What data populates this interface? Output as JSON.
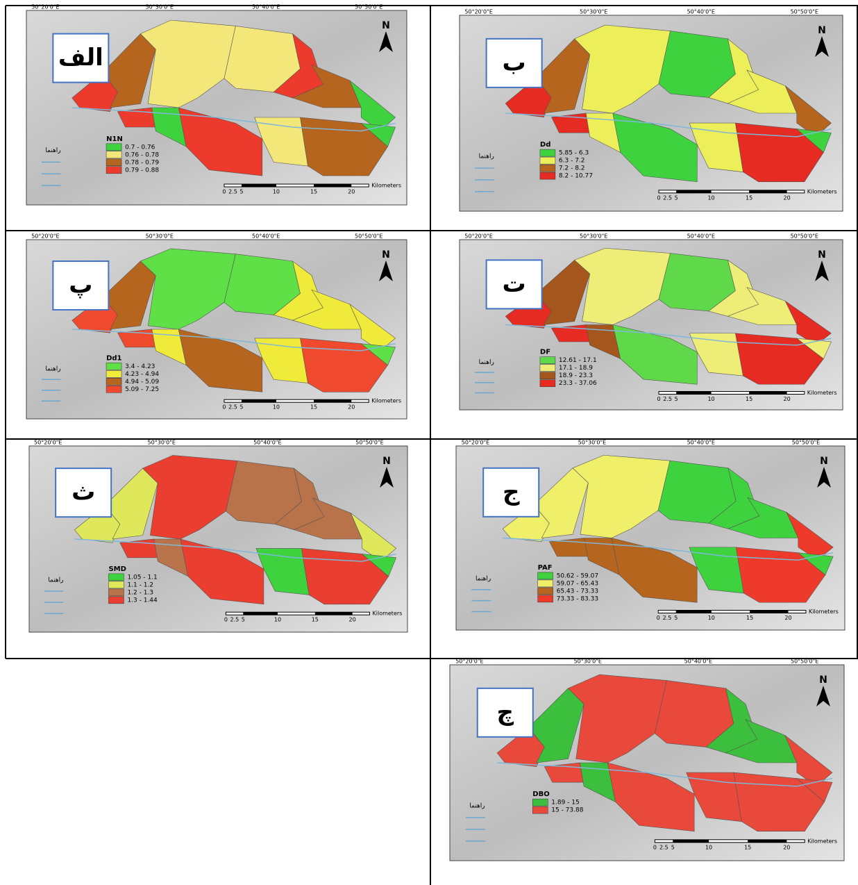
{
  "panels": [
    {
      "label": "الف",
      "legend": {
        "title": "N1N",
        "classes": [
          {
            "range": "0.7 - 0.76",
            "color": "#3fd23f"
          },
          {
            "range": "0.76 - 0.78",
            "color": "#f4e77a"
          },
          {
            "range": "0.78 - 0.79",
            "color": "#b5651d"
          },
          {
            "range": "0.79 - 0.88",
            "color": "#ec3b2c"
          }
        ]
      }
    },
    {
      "label": "ب",
      "legend": {
        "title": "Dd",
        "classes": [
          {
            "range": "5.85 - 6.3",
            "color": "#3fd23f"
          },
          {
            "range": "6.3 - 7.2",
            "color": "#ecef5a"
          },
          {
            "range": "7.2 - 8.2",
            "color": "#b5651d"
          },
          {
            "range": "8.2 - 10.77",
            "color": "#e52b22"
          }
        ]
      }
    },
    {
      "label": "پ",
      "legend": {
        "title": "Dd1",
        "classes": [
          {
            "range": "3.4 - 4.23",
            "color": "#5fe046"
          },
          {
            "range": "4.23 - 4.94",
            "color": "#f0ea3a"
          },
          {
            "range": "4.94 - 5.09",
            "color": "#b5651d"
          },
          {
            "range": "5.09 - 7.25",
            "color": "#ef4a2e"
          }
        ]
      }
    },
    {
      "label": "ت",
      "legend": {
        "title": "DF",
        "classes": [
          {
            "range": "12.61 - 17.1",
            "color": "#5fd84a"
          },
          {
            "range": "17.1 - 18.9",
            "color": "#eeed78"
          },
          {
            "range": "18.9 - 23.3",
            "color": "#a5561d"
          },
          {
            "range": "23.3 - 37.06",
            "color": "#e52b22"
          }
        ]
      }
    },
    {
      "label": "ث",
      "legend": {
        "title": "SMD",
        "classes": [
          {
            "range": "1.05 - 1.1",
            "color": "#3fd23f"
          },
          {
            "range": "1.1 - 1.2",
            "color": "#dfe85a"
          },
          {
            "range": "1.2 - 1.3",
            "color": "#b8734a"
          },
          {
            "range": "1.3 - 1.44",
            "color": "#ea3f30"
          }
        ]
      }
    },
    {
      "label": "ج",
      "legend": {
        "title": "PAF",
        "classes": [
          {
            "range": "50.62 - 59.07",
            "color": "#3fd23f"
          },
          {
            "range": "59.07 - 65.43",
            "color": "#f0ef6a"
          },
          {
            "range": "65.43 - 73.33",
            "color": "#b5651d"
          },
          {
            "range": "73.33 - 83.33",
            "color": "#ee3a2a"
          }
        ]
      }
    },
    {
      "label": "چ",
      "legend": {
        "title": "DBO",
        "classes": [
          {
            "range": "1.89 - 15",
            "color": "#3cbf3c"
          },
          {
            "range": "15 - 73.88",
            "color": "#e8493a"
          }
        ]
      }
    }
  ],
  "coordinates": [
    "50°20'0\"E",
    "50°30'0\"E",
    "50°40'0\"E",
    "50°50'0\"E"
  ],
  "north": "N",
  "legend_heading": "راهنما",
  "scale": {
    "ticks": [
      "0",
      "2.5",
      "5",
      "10",
      "15",
      "20"
    ],
    "unit": "Kilometers"
  }
}
